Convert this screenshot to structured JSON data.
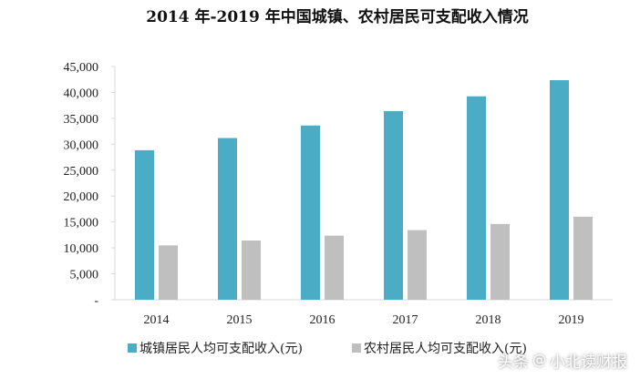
{
  "chart_data": {
    "type": "bar",
    "title": "2014 年-2019 年中国城镇、农村居民可支配收入情况",
    "categories": [
      "2014",
      "2015",
      "2016",
      "2017",
      "2018",
      "2019"
    ],
    "series": [
      {
        "name": "城镇居民人均可支配收入(元)",
        "color": "#4bacc6",
        "values": [
          28844,
          31195,
          33616,
          36396,
          39251,
          42359
        ]
      },
      {
        "name": "农村居民人均可支配收入(元)",
        "color": "#bfbfbf",
        "values": [
          10489,
          11422,
          12363,
          13432,
          14617,
          16021
        ]
      }
    ],
    "ylim": [
      0,
      45000
    ],
    "yticks": [
      "-",
      "5,000",
      "10,000",
      "15,000",
      "20,000",
      "25,000",
      "30,000",
      "35,000",
      "40,000",
      "45,000"
    ],
    "grid": false,
    "legend": "bottom"
  },
  "watermark": {
    "prefix": "头条",
    "at": "@",
    "handle": "小北读财报"
  }
}
